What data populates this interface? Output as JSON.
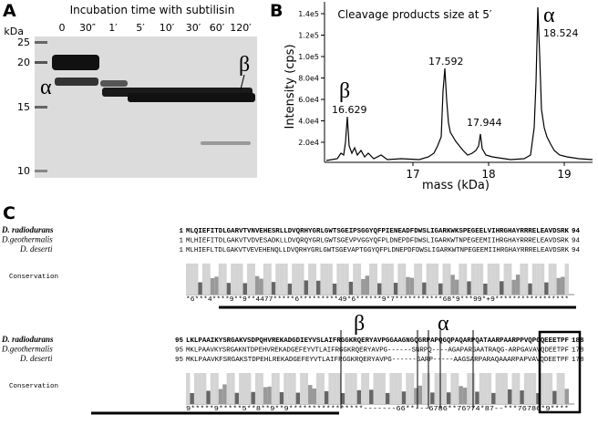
{
  "panel_a": {
    "label": "A",
    "title": "Incubation time with subtilisin",
    "lanes": [
      "0",
      "30″",
      "1′",
      "5′",
      "10′",
      "30′",
      "60′",
      "120′"
    ],
    "kda_unit": "kDa",
    "markers": [
      "25",
      "20",
      "15",
      "10"
    ],
    "alpha": "α",
    "beta": "β"
  },
  "panel_b": {
    "label": "B",
    "title": "Cleavage products size at 5′",
    "y_label": "Intensity (cps)",
    "x_label": "mass (kDa)",
    "yticks": [
      "2.0e4",
      "4.0e4",
      "6.0e4",
      "8.0e4",
      "1.0e5",
      "1.2e5",
      "1.4e5"
    ],
    "xticks": [
      "17",
      "18",
      "19"
    ],
    "peaks": [
      {
        "symbol": "β",
        "mass": "16.629"
      },
      {
        "mass": "17.592"
      },
      {
        "mass": "17.944"
      },
      {
        "symbol": "α",
        "mass": "18.524"
      }
    ]
  },
  "panel_c": {
    "label": "C",
    "conservation_label": "Conservation",
    "alpha": "α",
    "beta": "β",
    "blocks": [
      {
        "rows": [
          {
            "species": "D. radiodurans",
            "start": "1",
            "sequence": "MLQIEFITDLGARVTVNVEHESRLLDVQRHYGRLGWTSGEIPSGGYQFPIENEADFDWSLIGARKWKSPEGEELVIHRGHAYRRRELEAVDSRK",
            "end": "94"
          },
          {
            "species": "D.geothermalis",
            "start": "1",
            "sequence": "MLHIEFITDLGAKVTVDVESADKLLDVQRQYGRLGWTSGEVPVGGYQFPLDNEPDFDWSLIGARKWTNPEGEEMIIHRGHAYRRRELEAVDSRK",
            "end": "94"
          },
          {
            "species": "D. deserti",
            "start": "1",
            "sequence": "MLHIEFLTDLGAKVTVEVEHENQLLDVQRHYGRLGWTSGEVAPTGGYQFPLDNEPDFDWSLIGARKWTNPEGEEMIIHRGHAYRRRELEAVDSRK",
            "end": "94"
          }
        ],
        "conservation": "*6***4****9**9**4477*****6*********49*6******9*7***********68*9***99*+9*****************"
      },
      {
        "rows": [
          {
            "species": "D. radiodurans",
            "start": "95",
            "sequence": "LKLPAAIKYSRGAKVSDPQHVREKADGDIEYVSLAIFRGGKRQERYAVPGGAAGNGQGRPAPQGQPAQARPQATAARPAARPPVQPGQEEETPF",
            "end": "188"
          },
          {
            "species": "D.geothermalis",
            "start": "95",
            "sequence": "MKLPAAVKYSRGAKNTDPEHVREKADGEFEYVTLAIFRGGKRQERYAVPG------SNRPQ----AGAPARSAATRAQG-ARPGAVAVQDEETPF",
            "end": "178"
          },
          {
            "species": "D. deserti",
            "start": "95",
            "sequence": "MKLPAAVKFSRGAKSTDPEHLREKADGEFEYVTLAIFRGGKRQERYAVPG------GARP-----AAGSARPARAQAAARPAPVAVQDEETPF",
            "end": "178"
          }
        ],
        "conservation": "9*****9*****5**8**9**9****************-------66**---6786**76?74*87--***76786*9****"
      }
    ]
  }
}
